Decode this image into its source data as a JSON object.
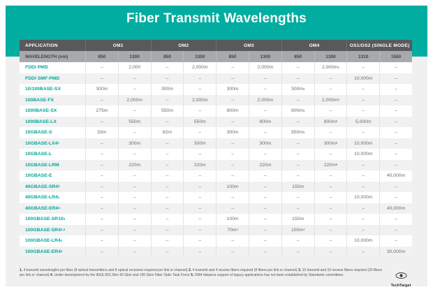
{
  "chart_data": {
    "type": "table",
    "title": "Fiber Transmit Wavelengths",
    "column_groups": [
      {
        "label": "APPLICATION",
        "span": 1
      },
      {
        "label": "OM1",
        "span": 2
      },
      {
        "label": "OM2",
        "span": 2
      },
      {
        "label": "OM3",
        "span": 2
      },
      {
        "label": "OM4",
        "span": 2
      },
      {
        "label": "OS1/OS2 (SINGLE MODE)",
        "span": 2
      }
    ],
    "wavelength_label": "WAVELENGTH (nm)",
    "wavelengths": [
      "850",
      "1300",
      "850",
      "1300",
      "850",
      "1300",
      "850",
      "1300",
      "1310",
      "1550"
    ],
    "rows": [
      {
        "label": "FDDI PMD",
        "cells": [
          "–",
          "2,000",
          "–",
          "2,000m",
          "–",
          "2,000m",
          "–",
          "2,000m^5",
          "–",
          "–"
        ]
      },
      {
        "label": "FDDI SMF-PMD",
        "cells": [
          "–",
          "–",
          "–",
          "–",
          "–",
          "–",
          "–",
          "–",
          "10,000m",
          "–"
        ]
      },
      {
        "label": "10/100BASE-SX",
        "cells": [
          "300m",
          "–",
          "300m",
          "–",
          "300m",
          "–",
          "300m^5",
          "–",
          "–",
          "–"
        ]
      },
      {
        "label": "100BASE-FX",
        "cells": [
          "–",
          "2,000m",
          "–",
          "2,000m",
          "–",
          "2,000m",
          "–",
          "2,000m^5",
          "–",
          "–"
        ]
      },
      {
        "label": "1000BASE-SX",
        "cells": [
          "275m",
          "–",
          "550m",
          "–",
          "800m",
          "–",
          "800m^5",
          "–",
          "–",
          "–"
        ]
      },
      {
        "label": "1000BASE-LX",
        "cells": [
          "–",
          "550m",
          "–",
          "550m",
          "–",
          "800m",
          "–",
          "800m^5",
          "5,000m",
          "–"
        ]
      },
      {
        "label": "10GBASE-S",
        "cells": [
          "33m",
          "–",
          "82m",
          "–",
          "300m",
          "–",
          "550m^5",
          "–",
          "–",
          "–"
        ]
      },
      {
        "label": "10GBASE-LX4",
        "sup": "1",
        "cells": [
          "–",
          "300m",
          "–",
          "300m",
          "–",
          "300m",
          "–",
          "300m^5",
          "10,000m",
          "–"
        ]
      },
      {
        "label": "10GBASE-L",
        "cells": [
          "–",
          "–",
          "–",
          "–",
          "–",
          "–",
          "–",
          "–",
          "10,000m",
          "–"
        ]
      },
      {
        "label": "10GBASE-LRM",
        "cells": [
          "–",
          "220m",
          "–",
          "220m",
          "–",
          "220m",
          "–",
          "220m^5",
          "–",
          "–"
        ]
      },
      {
        "label": "10GBASE-E",
        "cells": [
          "–",
          "–",
          "–",
          "–",
          "–",
          "–",
          "–",
          "–",
          "–",
          "40,000m"
        ]
      },
      {
        "label": "40GBASE-SR4",
        "sup": "2",
        "cells": [
          "–",
          "–",
          "–",
          "–",
          "100m",
          "–",
          "150m",
          "–",
          "–",
          "–"
        ]
      },
      {
        "label": "40GBASE-LR4",
        "sup": "1",
        "cells": [
          "–",
          "–",
          "–",
          "–",
          "–",
          "–",
          "–",
          "–",
          "10,000m",
          "–"
        ]
      },
      {
        "label": "40GBASE-ER4",
        "sup": "4",
        "cells": [
          "–",
          "–",
          "–",
          "–",
          "–",
          "–",
          "–",
          "–",
          "–",
          "40,000m"
        ]
      },
      {
        "label": "100GBASE-SR10",
        "sup": "3",
        "cells": [
          "–",
          "–",
          "–",
          "–",
          "100m",
          "–",
          "150m",
          "–",
          "–",
          "–"
        ]
      },
      {
        "label": "100GBASE-SR4",
        "sup": "2,4",
        "cells": [
          "–",
          "–",
          "–",
          "–",
          "70m^4",
          "–",
          "100m^4",
          "–",
          "–",
          "–"
        ]
      },
      {
        "label": "100GBASE-LR4",
        "sup": "1",
        "cells": [
          "–",
          "–",
          "–",
          "–",
          "–",
          "–",
          "–",
          "–",
          "10,000m",
          "–"
        ]
      },
      {
        "label": "100GBASE-ER4",
        "sup": "1",
        "cells": [
          "–",
          "–",
          "–",
          "–",
          "–",
          "–",
          "–",
          "–",
          "–",
          "30,000m"
        ]
      }
    ]
  },
  "footnotes": [
    {
      "num": "1.",
      "text": "4 transmit wavelengths per fiber (8 optical transmitters and 8 optical receivers required per link or channel)"
    },
    {
      "num": "2.",
      "text": "4 transmit and 4 receive fibers required (8 fibers per link or channel)"
    },
    {
      "num": "3.",
      "text": "10 transmit and 10 receive fibers required (20 fibers per link or channel)"
    },
    {
      "num": "4.",
      "text": "Under development by the IEEE 802.3bm 40 Gb/s and 100 Gb/s Fiber Optic Task Force"
    },
    {
      "num": "5.",
      "text": "OM4 distance support of legacy applications has not been established by Standards committees"
    }
  ],
  "logo": {
    "text": "TechTarget"
  },
  "colors": {
    "teal": "#00ada0",
    "app_text": "#00a79b",
    "header_dark": "#58595b",
    "header_gray": "#a7a9ac",
    "row_alt": "#f1f1f2",
    "background_gray": "#f0f0f1"
  }
}
